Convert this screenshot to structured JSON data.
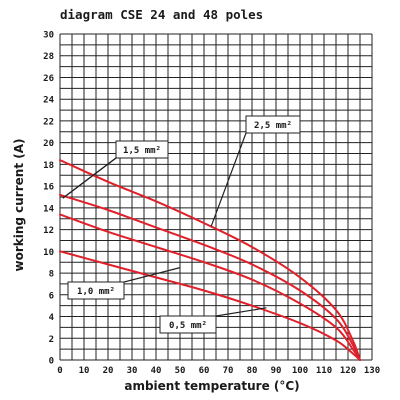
{
  "chart_data": {
    "type": "line",
    "title": "diagram CSE 24 and 48 poles",
    "xlabel": "ambient temperature (°C)",
    "ylabel": "working current (A)",
    "xlim": [
      0,
      130
    ],
    "ylim": [
      0,
      30
    ],
    "x_ticks": [
      "0",
      "10",
      "20",
      "30",
      "40",
      "50",
      "60",
      "70",
      "80",
      "90",
      "100",
      "110",
      "120",
      "130"
    ],
    "y_ticks": [
      "0",
      "2",
      "4",
      "6",
      "8",
      "10",
      "12",
      "14",
      "16",
      "18",
      "20",
      "22",
      "24",
      "26",
      "28",
      "30"
    ],
    "grid": true,
    "line_color": "#e0202a",
    "series": [
      {
        "name": "2,5 mm²",
        "points": [
          [
            0,
            18.4
          ],
          [
            20,
            16.4
          ],
          [
            40,
            14.6
          ],
          [
            60,
            12.6
          ],
          [
            80,
            10.4
          ],
          [
            100,
            7.6
          ],
          [
            115,
            4.6
          ],
          [
            122,
            1.8
          ],
          [
            125,
            0
          ]
        ]
      },
      {
        "name": "1,5 mm²",
        "points": [
          [
            0,
            15.2
          ],
          [
            20,
            13.8
          ],
          [
            40,
            12.2
          ],
          [
            60,
            10.6
          ],
          [
            80,
            8.8
          ],
          [
            100,
            6.4
          ],
          [
            115,
            3.8
          ],
          [
            122,
            1.4
          ],
          [
            125,
            0
          ]
        ]
      },
      {
        "name": "1,0 mm²",
        "points": [
          [
            0,
            13.4
          ],
          [
            20,
            11.8
          ],
          [
            40,
            10.4
          ],
          [
            60,
            9.0
          ],
          [
            80,
            7.4
          ],
          [
            100,
            5.2
          ],
          [
            115,
            3.0
          ],
          [
            122,
            1.0
          ],
          [
            125,
            0
          ]
        ]
      },
      {
        "name": "0,5 mm²",
        "points": [
          [
            0,
            10.0
          ],
          [
            20,
            8.8
          ],
          [
            40,
            7.6
          ],
          [
            60,
            6.4
          ],
          [
            80,
            5.0
          ],
          [
            100,
            3.4
          ],
          [
            115,
            1.8
          ],
          [
            122,
            0.6
          ],
          [
            125,
            0
          ]
        ]
      }
    ],
    "annotations": [
      {
        "text": "1,5 mm²",
        "series": "1,5 mm²"
      },
      {
        "text": "2,5 mm²",
        "series": "2,5 mm²"
      },
      {
        "text": "1,0 mm²",
        "series": "1,0 mm²"
      },
      {
        "text": "0,5 mm²",
        "series": "0,5 mm²"
      }
    ]
  }
}
